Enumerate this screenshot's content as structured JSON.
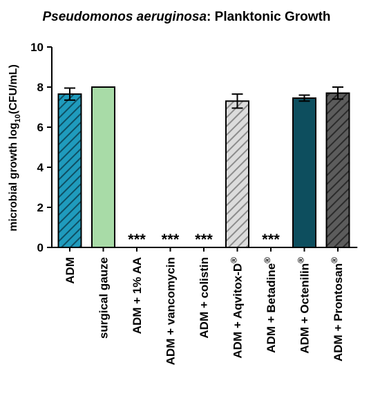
{
  "chart_data": {
    "type": "bar",
    "title": {
      "italic": "Pseudomonos aeruginosa",
      "rest": ": Planktonic Growth"
    },
    "ylabel": {
      "pre": "microbial growth log",
      "sub": "10",
      "post": "(CFU/mL)"
    },
    "xlabel": "",
    "ylim": [
      0,
      10
    ],
    "yticks": [
      "0",
      "2",
      "4",
      "6",
      "8",
      "10"
    ],
    "grid": false,
    "categories": [
      {
        "label": "ADM",
        "sup": ""
      },
      {
        "label": "surgical gauze",
        "sup": ""
      },
      {
        "label": "ADM + 1% AA",
        "sup": ""
      },
      {
        "label": "ADM + vancomycin",
        "sup": ""
      },
      {
        "label": "ADM + colistin",
        "sup": ""
      },
      {
        "label": "ADM + Aqvitox-D",
        "sup": "®"
      },
      {
        "label": "ADM + Betadine",
        "sup": "®"
      },
      {
        "label": "ADM + Octenilin",
        "sup": "®"
      },
      {
        "label": "ADM + Prontosan",
        "sup": "®"
      }
    ],
    "values": [
      7.65,
      8.0,
      0,
      0,
      0,
      7.3,
      0,
      7.45,
      7.7
    ],
    "errors": [
      0.3,
      0,
      0,
      0,
      0,
      0.35,
      0,
      0.15,
      0.3
    ],
    "annotations": [
      "",
      "",
      "***",
      "***",
      "***",
      "",
      "***",
      "",
      ""
    ],
    "bar_styles": [
      {
        "fill": "#1f9bbd",
        "hatch": true,
        "hatch_color": "#0f4f63"
      },
      {
        "fill": "#a8dba7",
        "hatch": false,
        "hatch_color": ""
      },
      {
        "fill": "#ffffff",
        "hatch": false,
        "hatch_color": ""
      },
      {
        "fill": "#ffffff",
        "hatch": false,
        "hatch_color": ""
      },
      {
        "fill": "#ffffff",
        "hatch": false,
        "hatch_color": ""
      },
      {
        "fill": "#dcdcdc",
        "hatch": true,
        "hatch_color": "#8c8c8c"
      },
      {
        "fill": "#ffffff",
        "hatch": false,
        "hatch_color": ""
      },
      {
        "fill": "#0d4e5e",
        "hatch": false,
        "hatch_color": ""
      },
      {
        "fill": "#5c5c5c",
        "hatch": true,
        "hatch_color": "#2b2b2b"
      }
    ]
  }
}
